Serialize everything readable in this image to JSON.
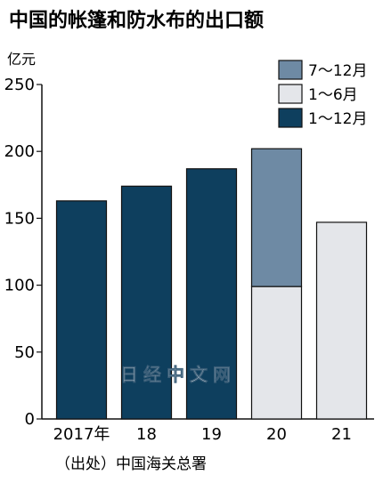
{
  "chart_data": {
    "type": "bar",
    "stacked": true,
    "title": "中国的帐篷和防水布的出口额",
    "ylabel": "亿元",
    "ylim": [
      0,
      250
    ],
    "yticks": [
      0,
      50,
      100,
      150,
      200,
      250
    ],
    "categories": [
      "2017年",
      "18",
      "19",
      "20",
      "21"
    ],
    "series": [
      {
        "name": "1〜12月",
        "color": "#0e3f5e",
        "values": [
          163,
          174,
          187,
          null,
          null
        ]
      },
      {
        "name": "1〜6月",
        "color": "#e4e6ea",
        "values": [
          null,
          null,
          null,
          99,
          147
        ]
      },
      {
        "name": "7〜12月",
        "color": "#6e8aa4",
        "values": [
          null,
          null,
          null,
          103,
          null
        ]
      }
    ],
    "legend": {
      "position": "top-right",
      "order": [
        "7〜12月",
        "1〜6月",
        "1〜12月"
      ]
    },
    "grid": false,
    "source": "（出处）中国海关总署",
    "watermark": "日经中文网"
  }
}
